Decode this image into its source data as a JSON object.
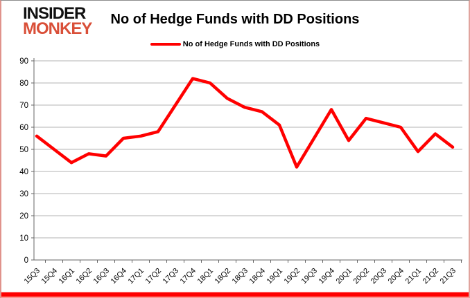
{
  "logo": {
    "line1": "INSIDER",
    "line2": "MONKEY"
  },
  "header": {
    "title": "No of Hedge Funds with DD Positions"
  },
  "legend": {
    "label": "No of Hedge Funds with DD Positions"
  },
  "colors": {
    "series": "#ff0000",
    "logo_black": "#111111",
    "logo_red": "#d94f38",
    "grid": "#b3b3b3",
    "axis": "#666666",
    "text": "#000000",
    "accent_bar": "#ff0000"
  },
  "chart_data": {
    "type": "line",
    "title": "No of Hedge Funds with DD Positions",
    "categories": [
      "15Q3",
      "15Q4",
      "16Q1",
      "16Q2",
      "16Q3",
      "16Q4",
      "17Q1",
      "17Q2",
      "17Q3",
      "17Q4",
      "18Q1",
      "18Q2",
      "18Q3",
      "18Q4",
      "19Q1",
      "19Q2",
      "19Q3",
      "19Q4",
      "20Q1",
      "20Q2",
      "20Q3",
      "20Q4",
      "21Q1",
      "21Q2",
      "21Q3"
    ],
    "series": [
      {
        "name": "No of Hedge Funds with DD Positions",
        "color": "#ff0000",
        "values": [
          56,
          50,
          44,
          48,
          47,
          55,
          56,
          58,
          70,
          82,
          80,
          73,
          69,
          67,
          61,
          42,
          55,
          68,
          54,
          64,
          62,
          60,
          49,
          57,
          51
        ]
      }
    ],
    "xlabel": "",
    "ylabel": "",
    "ylim": [
      0,
      90
    ],
    "ytick_step": 10,
    "grid": true,
    "legend_position": "top-center"
  }
}
